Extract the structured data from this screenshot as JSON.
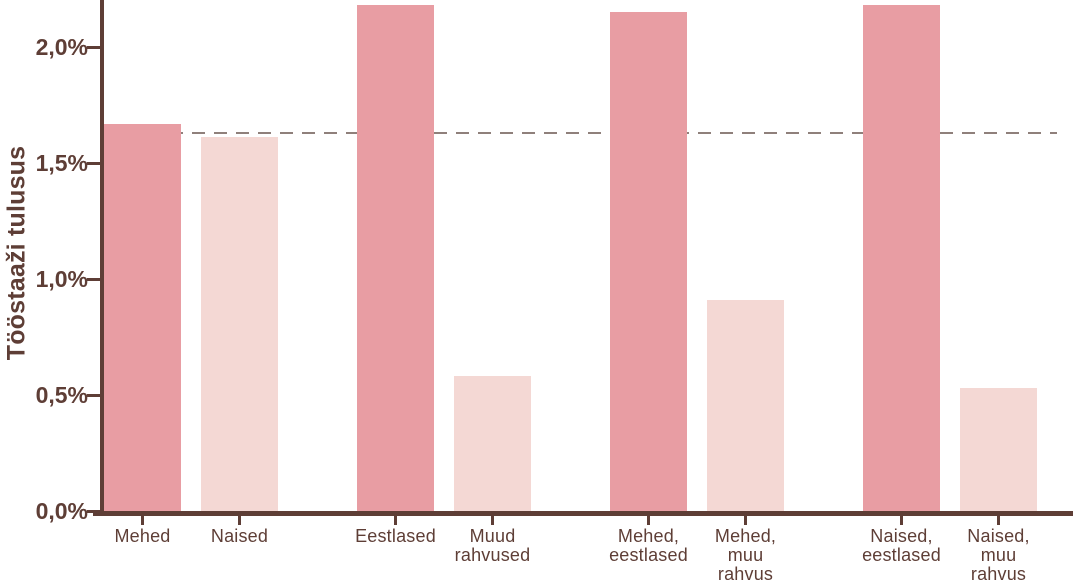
{
  "chart_data": {
    "type": "bar",
    "title": "",
    "xlabel": "",
    "ylabel": "Tööstaaži tulusus",
    "categories": [
      "Mehed",
      "Naised",
      "Eestlased",
      "Muud rahvused",
      "Mehed, eestlased",
      "Mehed, muu rahvus",
      "Naised, eestlased",
      "Naised, muu rahvus"
    ],
    "category_lines": [
      [
        "Mehed"
      ],
      [
        "Naised"
      ],
      [
        "Eestlased"
      ],
      [
        "Muud",
        "rahvused"
      ],
      [
        "Mehed,",
        "eestlased"
      ],
      [
        "Mehed,",
        "muu",
        "rahvus"
      ],
      [
        "Naised,",
        "eestlased"
      ],
      [
        "Naised,",
        "muu",
        "rahvus"
      ]
    ],
    "values": [
      1.67,
      1.61,
      2.18,
      0.58,
      2.15,
      0.91,
      2.18,
      0.53
    ],
    "bar_styles": [
      "dark",
      "light",
      "dark",
      "light",
      "dark",
      "light",
      "dark",
      "light"
    ],
    "groups": [
      [
        0,
        1
      ],
      [
        2,
        3
      ],
      [
        4,
        5
      ],
      [
        6,
        7
      ]
    ],
    "y_ticks": [
      "0,0%",
      "0,5%",
      "1,0%",
      "1,5%",
      "2,0%"
    ],
    "y_tick_values": [
      0.0,
      0.5,
      1.0,
      1.5,
      2.0
    ],
    "ylim": [
      0,
      2.2
    ],
    "value_unit": "%",
    "reference_line": {
      "value": 1.63,
      "style": "dashed"
    },
    "grid": false,
    "legend": "none",
    "colors": {
      "bar_dark": "#E89DA3",
      "bar_light": "#F4D8D4",
      "axis": "#5E3E36",
      "reference": "#8F807B"
    }
  }
}
